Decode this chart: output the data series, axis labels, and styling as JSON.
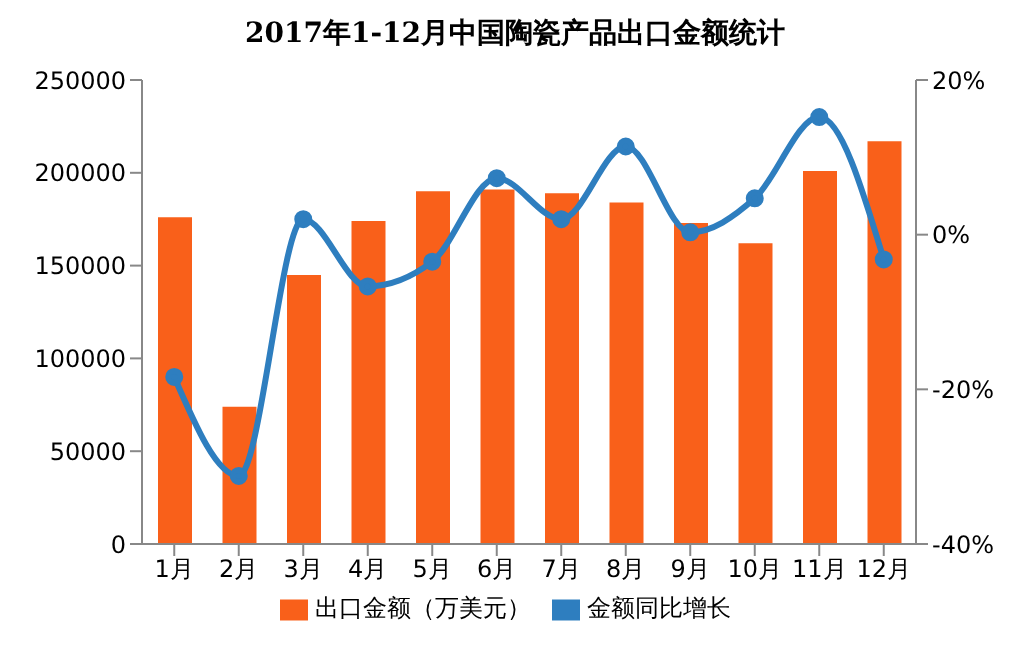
{
  "chart_data": {
    "type": "bar",
    "title": "2017年1-12月中国陶瓷产品出口金额统计",
    "categories": [
      "1月",
      "2月",
      "3月",
      "4月",
      "5月",
      "6月",
      "7月",
      "8月",
      "9月",
      "10月",
      "11月",
      "12月"
    ],
    "series": [
      {
        "name": "出口金额（万美元）",
        "color": "#f9601a",
        "values": [
          176000,
          74000,
          145000,
          174000,
          190000,
          191000,
          189000,
          184000,
          173000,
          162000,
          201000,
          217000
        ]
      },
      {
        "name": "金额同比增长",
        "type": "line",
        "axis": "y2",
        "color": "#2e7ebf",
        "values": [
          -18.4,
          -31.2,
          2,
          -6.7,
          -3.5,
          7.3,
          2,
          11.4,
          0.3,
          4.7,
          15.2,
          -3.2
        ]
      }
    ],
    "ylim": [
      0,
      250000
    ],
    "yticks": [
      0,
      50000,
      100000,
      150000,
      200000,
      250000
    ],
    "y2lim": [
      -40,
      20
    ],
    "y2ticks": [
      {
        "value": -40,
        "label": "-40%"
      },
      {
        "value": -20,
        "label": "-20%"
      },
      {
        "value": 0,
        "label": "0%"
      },
      {
        "value": 20,
        "label": "20%"
      }
    ],
    "marker": "circle",
    "legend": "bottom",
    "grid": false
  }
}
